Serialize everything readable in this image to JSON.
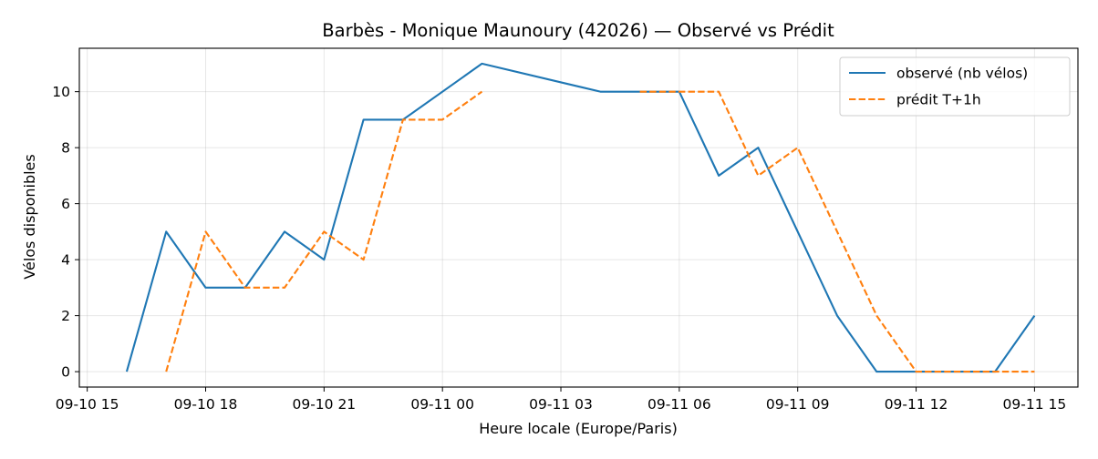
{
  "chart_data": {
    "type": "line",
    "title": "Barbès - Monique Maunoury (42026) — Observé vs Prédit",
    "xlabel": "Heure locale (Europe/Paris)",
    "ylabel": "Vélos disponibles",
    "x_ticks": [
      "09-10 15",
      "09-10 18",
      "09-10 21",
      "09-11 00",
      "09-11 03",
      "09-11 06",
      "09-11 09",
      "09-11 12",
      "09-11 15"
    ],
    "x_tick_times": [
      "2025-09-10 15:00",
      "2025-09-10 18:00",
      "2025-09-10 21:00",
      "2025-09-11 00:00",
      "2025-09-11 03:00",
      "2025-09-11 06:00",
      "2025-09-11 09:00",
      "2025-09-11 12:00",
      "2025-09-11 15:00"
    ],
    "xlim": [
      "2025-09-10 14:48",
      "2025-09-11 16:06"
    ],
    "y_ticks": [
      "0",
      "2",
      "4",
      "6",
      "8",
      "10"
    ],
    "ylim": [
      -0.55,
      11.55
    ],
    "grid": true,
    "legend_position": "top-right",
    "series": [
      {
        "name": "observé (nb vélos)",
        "color": "#1f77b4",
        "dash": "solid",
        "x": [
          "2025-09-10 16:00",
          "2025-09-10 17:00",
          "2025-09-10 18:00",
          "2025-09-10 19:00",
          "2025-09-10 20:00",
          "2025-09-10 21:00",
          "2025-09-10 22:00",
          "2025-09-10 23:00",
          "2025-09-11 01:00",
          "2025-09-11 04:00",
          "2025-09-11 06:00",
          "2025-09-11 07:00",
          "2025-09-11 08:00",
          "2025-09-11 09:00",
          "2025-09-11 10:00",
          "2025-09-11 11:00",
          "2025-09-11 12:00",
          "2025-09-11 13:00",
          "2025-09-11 14:00",
          "2025-09-11 15:00"
        ],
        "values": [
          0,
          5,
          3,
          3,
          5,
          4,
          9,
          9,
          11,
          10,
          10,
          7,
          8,
          5,
          2,
          0,
          0,
          0,
          0,
          2
        ]
      },
      {
        "name": "prédit T+1h",
        "color": "#ff7f0e",
        "dash": "dashed",
        "x": [
          "2025-09-10 17:00",
          "2025-09-10 18:00",
          "2025-09-10 19:00",
          "2025-09-10 20:00",
          "2025-09-10 21:00",
          "2025-09-10 22:00",
          "2025-09-10 23:00",
          "2025-09-11 00:00",
          "2025-09-11 01:00"
        ],
        "values": [
          0,
          5,
          3,
          3,
          5,
          4,
          9,
          9,
          10
        ]
      },
      {
        "name": "prédit T+1h",
        "color": "#ff7f0e",
        "dash": "dashed",
        "legend": false,
        "x": [
          "2025-09-11 05:00",
          "2025-09-11 07:00",
          "2025-09-11 08:00",
          "2025-09-11 09:00",
          "2025-09-11 10:00",
          "2025-09-11 11:00",
          "2025-09-11 12:00",
          "2025-09-11 13:00",
          "2025-09-11 14:00",
          "2025-09-11 15:00"
        ],
        "values": [
          10,
          10,
          7,
          8,
          5,
          2,
          0,
          0,
          0,
          0
        ]
      }
    ]
  }
}
